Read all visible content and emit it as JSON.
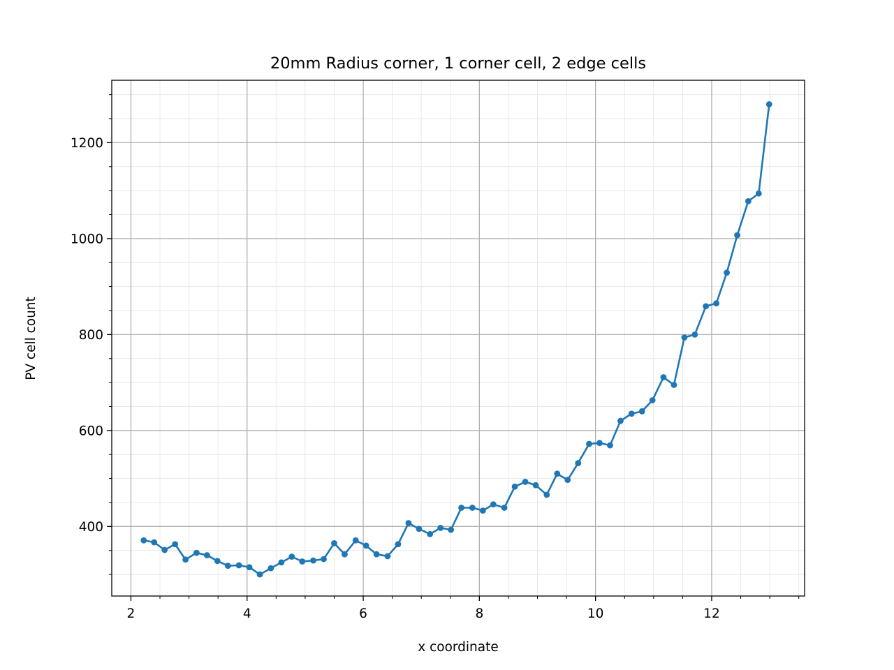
{
  "chart_data": {
    "type": "line",
    "title": "20mm Radius corner, 1 corner cell, 2 edge cells",
    "xlabel": "x coordinate",
    "ylabel": "PV cell count",
    "xlim": [
      1.67,
      13.6
    ],
    "ylim": [
      255,
      1330
    ],
    "x_ticks": [
      2,
      4,
      6,
      8,
      10,
      12
    ],
    "x_tick_labels": [
      "2",
      "4",
      "6",
      "8",
      "10",
      "12"
    ],
    "y_ticks": [
      400,
      600,
      800,
      1000,
      1200
    ],
    "y_tick_labels": [
      "400",
      "600",
      "800",
      "1000",
      "1200"
    ],
    "x_minor_step": 0.5,
    "y_minor_step": 50,
    "grid": true,
    "minor_grid": true,
    "line_color": "#1f77b4",
    "series": [
      {
        "x": [
          2.22,
          2.4,
          2.58,
          2.76,
          2.94,
          3.13,
          3.31,
          3.49,
          3.67,
          3.86,
          4.04,
          4.22,
          4.41,
          4.59,
          4.77,
          4.95,
          5.14,
          5.32,
          5.5,
          5.68,
          5.87,
          6.05,
          6.23,
          6.42,
          6.6,
          6.78,
          6.96,
          7.15,
          7.33,
          7.51,
          7.69,
          7.88,
          8.06,
          8.24,
          8.43,
          8.61,
          8.79,
          8.97,
          9.16,
          9.34,
          9.52,
          9.7,
          9.89,
          10.07,
          10.25,
          10.43,
          10.62,
          10.8,
          10.98,
          11.17,
          11.35,
          11.53,
          11.71,
          11.9,
          12.08,
          12.26,
          12.44,
          12.63,
          12.81,
          12.99
        ],
        "y": [
          371,
          367,
          351,
          363,
          331,
          345,
          340,
          328,
          318,
          319,
          315,
          300,
          313,
          325,
          337,
          327,
          329,
          332,
          365,
          342,
          371,
          360,
          342,
          338,
          363,
          407,
          395,
          384,
          397,
          393,
          439,
          439,
          433,
          446,
          439,
          483,
          493,
          486,
          466,
          510,
          497,
          532,
          572,
          574,
          569,
          620,
          635,
          640,
          663,
          711,
          695,
          794,
          800,
          859,
          865,
          929,
          1007,
          1078,
          1094,
          1280
        ]
      }
    ]
  }
}
